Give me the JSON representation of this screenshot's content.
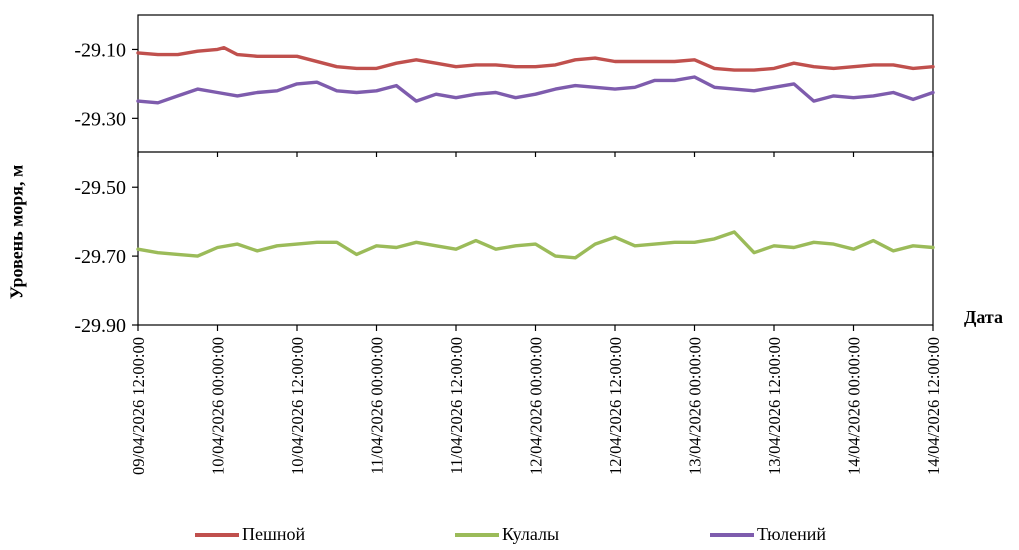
{
  "chart_data": {
    "type": "line",
    "title": "",
    "xlabel": "Дата",
    "ylabel": "Уровень моря, м",
    "ylim": [
      -29.9,
      -29.0
    ],
    "yticks": [
      -29.9,
      -29.7,
      -29.5,
      -29.3,
      -29.1
    ],
    "ytick_labels": [
      "-29.90",
      "-29.70",
      "-29.50",
      "-29.30",
      "-29.10"
    ],
    "xlim": [
      "09/04/2026 12:00:00",
      "14/04/2026 12:00:00"
    ],
    "xtick_labels": [
      "09/04/2026 12:00:00",
      "10/04/2026 00:00:00",
      "10/04/2026 12:00:00",
      "11/04/2026 00:00:00",
      "11/04/2026 12:00:00",
      "12/04/2026 00:00:00",
      "12/04/2026 12:00:00",
      "13/04/2026 00:00:00",
      "13/04/2026 12:00:00",
      "14/04/2026 00:00:00",
      "14/04/2026 12:00:00"
    ],
    "grid": false,
    "legend_position": "bottom",
    "series": [
      {
        "name": "Пешной",
        "color": "#c0504d",
        "x": [
          "09/04/2026 12:00:00",
          "09/04/2026 15:00:00",
          "09/04/2026 18:00:00",
          "09/04/2026 21:00:00",
          "10/04/2026 00:00:00",
          "10/04/2026 01:00:00",
          "10/04/2026 03:00:00",
          "10/04/2026 06:00:00",
          "10/04/2026 09:00:00",
          "10/04/2026 12:00:00",
          "10/04/2026 18:00:00",
          "10/04/2026 21:00:00",
          "11/04/2026 00:00:00",
          "11/04/2026 03:00:00",
          "11/04/2026 06:00:00",
          "11/04/2026 09:00:00",
          "11/04/2026 12:00:00",
          "11/04/2026 15:00:00",
          "11/04/2026 18:00:00",
          "11/04/2026 21:00:00",
          "12/04/2026 00:00:00",
          "12/04/2026 03:00:00",
          "12/04/2026 06:00:00",
          "12/04/2026 09:00:00",
          "12/04/2026 12:00:00",
          "12/04/2026 15:00:00",
          "12/04/2026 18:00:00",
          "12/04/2026 21:00:00",
          "13/04/2026 00:00:00",
          "13/04/2026 03:00:00",
          "13/04/2026 06:00:00",
          "13/04/2026 09:00:00",
          "13/04/2026 12:00:00",
          "13/04/2026 15:00:00",
          "13/04/2026 18:00:00",
          "13/04/2026 21:00:00",
          "14/04/2026 00:00:00",
          "14/04/2026 03:00:00",
          "14/04/2026 06:00:00",
          "14/04/2026 09:00:00",
          "14/04/2026 12:00:00"
        ],
        "y": [
          -29.11,
          -29.115,
          -29.115,
          -29.105,
          -29.1,
          -29.095,
          -29.115,
          -29.12,
          -29.12,
          -29.12,
          -29.15,
          -29.155,
          -29.155,
          -29.14,
          -29.13,
          -29.14,
          -29.15,
          -29.145,
          -29.145,
          -29.15,
          -29.15,
          -29.145,
          -29.13,
          -29.125,
          -29.135,
          -29.135,
          -29.135,
          -29.135,
          -29.13,
          -29.155,
          -29.16,
          -29.16,
          -29.155,
          -29.14,
          -29.15,
          -29.155,
          -29.15,
          -29.145,
          -29.145,
          -29.155,
          -29.15
        ]
      },
      {
        "name": "Кулалы",
        "color": "#9bbb59",
        "x": [
          "09/04/2026 12:00:00",
          "09/04/2026 15:00:00",
          "09/04/2026 18:00:00",
          "09/04/2026 21:00:00",
          "10/04/2026 00:00:00",
          "10/04/2026 03:00:00",
          "10/04/2026 06:00:00",
          "10/04/2026 09:00:00",
          "10/04/2026 12:00:00",
          "10/04/2026 15:00:00",
          "10/04/2026 18:00:00",
          "10/04/2026 21:00:00",
          "11/04/2026 00:00:00",
          "11/04/2026 03:00:00",
          "11/04/2026 06:00:00",
          "11/04/2026 09:00:00",
          "11/04/2026 12:00:00",
          "11/04/2026 15:00:00",
          "11/04/2026 18:00:00",
          "11/04/2026 21:00:00",
          "12/04/2026 00:00:00",
          "12/04/2026 03:00:00",
          "12/04/2026 06:00:00",
          "12/04/2026 09:00:00",
          "12/04/2026 12:00:00",
          "12/04/2026 15:00:00",
          "12/04/2026 18:00:00",
          "12/04/2026 21:00:00",
          "13/04/2026 00:00:00",
          "13/04/2026 03:00:00",
          "13/04/2026 06:00:00",
          "13/04/2026 09:00:00",
          "13/04/2026 12:00:00",
          "13/04/2026 15:00:00",
          "13/04/2026 18:00:00",
          "13/04/2026 21:00:00",
          "14/04/2026 00:00:00",
          "14/04/2026 03:00:00",
          "14/04/2026 06:00:00",
          "14/04/2026 09:00:00",
          "14/04/2026 12:00:00"
        ],
        "y": [
          -29.68,
          -29.69,
          -29.695,
          -29.7,
          -29.675,
          -29.665,
          -29.685,
          -29.67,
          -29.665,
          -29.66,
          -29.66,
          -29.695,
          -29.67,
          -29.675,
          -29.66,
          -29.67,
          -29.68,
          -29.655,
          -29.68,
          -29.67,
          -29.665,
          -29.7,
          -29.705,
          -29.665,
          -29.645,
          -29.67,
          -29.665,
          -29.66,
          -29.66,
          -29.65,
          -29.63,
          -29.69,
          -29.67,
          -29.675,
          -29.66,
          -29.665,
          -29.68,
          -29.655,
          -29.685,
          -29.67,
          -29.675
        ]
      },
      {
        "name": "Тюлений",
        "color": "#7e5cad",
        "x": [
          "09/04/2026 12:00:00",
          "09/04/2026 15:00:00",
          "09/04/2026 18:00:00",
          "09/04/2026 21:00:00",
          "10/04/2026 00:00:00",
          "10/04/2026 03:00:00",
          "10/04/2026 06:00:00",
          "10/04/2026 09:00:00",
          "10/04/2026 12:00:00",
          "10/04/2026 15:00:00",
          "10/04/2026 18:00:00",
          "10/04/2026 21:00:00",
          "11/04/2026 00:00:00",
          "11/04/2026 03:00:00",
          "11/04/2026 06:00:00",
          "11/04/2026 09:00:00",
          "11/04/2026 12:00:00",
          "11/04/2026 15:00:00",
          "11/04/2026 18:00:00",
          "11/04/2026 21:00:00",
          "12/04/2026 00:00:00",
          "12/04/2026 03:00:00",
          "12/04/2026 06:00:00",
          "12/04/2026 09:00:00",
          "12/04/2026 12:00:00",
          "12/04/2026 15:00:00",
          "12/04/2026 18:00:00",
          "12/04/2026 21:00:00",
          "13/04/2026 00:00:00",
          "13/04/2026 03:00:00",
          "13/04/2026 06:00:00",
          "13/04/2026 09:00:00",
          "13/04/2026 12:00:00",
          "13/04/2026 15:00:00",
          "13/04/2026 18:00:00",
          "13/04/2026 21:00:00",
          "14/04/2026 00:00:00",
          "14/04/2026 03:00:00",
          "14/04/2026 06:00:00",
          "14/04/2026 09:00:00",
          "14/04/2026 12:00:00"
        ],
        "y": [
          -29.25,
          -29.255,
          -29.235,
          -29.215,
          -29.225,
          -29.235,
          -29.225,
          -29.22,
          -29.2,
          -29.195,
          -29.22,
          -29.225,
          -29.22,
          -29.205,
          -29.25,
          -29.23,
          -29.24,
          -29.23,
          -29.225,
          -29.24,
          -29.23,
          -29.215,
          -29.205,
          -29.21,
          -29.215,
          -29.21,
          -29.19,
          -29.19,
          -29.18,
          -29.21,
          -29.215,
          -29.22,
          -29.21,
          -29.2,
          -29.25,
          -29.235,
          -29.24,
          -29.235,
          -29.225,
          -29.245,
          -29.225
        ]
      }
    ]
  }
}
